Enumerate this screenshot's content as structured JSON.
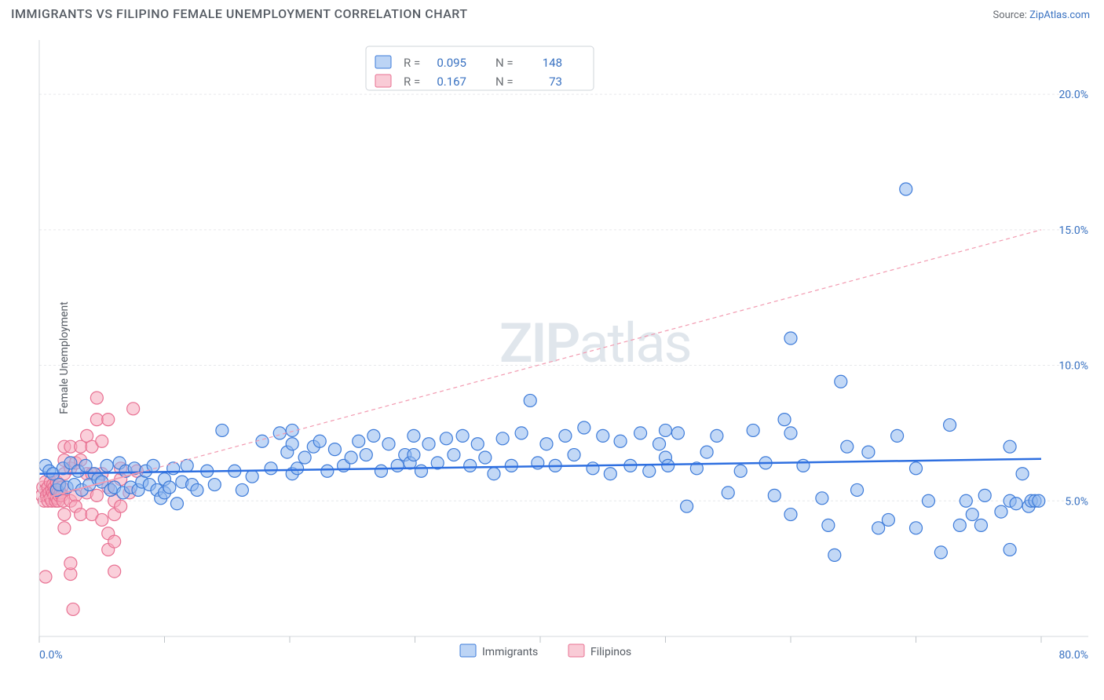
{
  "title": "IMMIGRANTS VS FILIPINO FEMALE UNEMPLOYMENT CORRELATION CHART",
  "source_label": "Source: ",
  "source_link_text": "ZipAtlas.com",
  "ylabel": "Female Unemployment",
  "watermark_a": "ZIP",
  "watermark_b": "atlas",
  "chart": {
    "type": "scatter",
    "background_color": "#ffffff",
    "grid_color": "#e6e8eb",
    "axis_color": "#d6d9dd",
    "tick_color": "#bfc4c9",
    "xlim": [
      0,
      80
    ],
    "ylim": [
      0,
      22
    ],
    "x_tick_positions": [
      0,
      10,
      20,
      30,
      40,
      50,
      60,
      70,
      80
    ],
    "x_tick_labels": [
      "0.0%",
      "",
      "",
      "",
      "",
      "",
      "",
      "",
      "80.0%"
    ],
    "y_tick_positions": [
      5,
      10,
      15,
      20
    ],
    "y_tick_labels": [
      "5.0%",
      "10.0%",
      "15.0%",
      "20.0%"
    ],
    "label_fontsize": 14,
    "tick_label_color": "#3871c1",
    "series": [
      {
        "name": "Immigrants",
        "marker_color": "#8fb8ee",
        "marker_edge_color": "#3d7bd9",
        "marker_radius": 8,
        "marker_opacity": 0.55,
        "trend": {
          "x0": 0,
          "y0": 6.0,
          "x1": 80,
          "y1": 6.55,
          "color": "#2e6fe0",
          "width": 2.5,
          "dash": null
        },
        "R": 0.095,
        "N": 148,
        "points": [
          [
            0.5,
            6.3
          ],
          [
            0.8,
            6.1
          ],
          [
            1.1,
            6.0
          ],
          [
            1.4,
            5.4
          ],
          [
            1.6,
            5.6
          ],
          [
            1.9,
            6.2
          ],
          [
            2.2,
            5.5
          ],
          [
            2.5,
            6.4
          ],
          [
            2.8,
            5.6
          ],
          [
            3.1,
            6.1
          ],
          [
            3.4,
            5.4
          ],
          [
            3.7,
            6.3
          ],
          [
            4.0,
            5.6
          ],
          [
            4.4,
            6.0
          ],
          [
            4.7,
            5.8
          ],
          [
            5.0,
            5.7
          ],
          [
            5.4,
            6.3
          ],
          [
            5.7,
            5.4
          ],
          [
            6.0,
            5.5
          ],
          [
            6.4,
            6.4
          ],
          [
            6.7,
            5.3
          ],
          [
            6.9,
            6.1
          ],
          [
            7.3,
            5.5
          ],
          [
            7.6,
            6.2
          ],
          [
            7.9,
            5.4
          ],
          [
            8.2,
            5.7
          ],
          [
            8.5,
            6.1
          ],
          [
            8.8,
            5.6
          ],
          [
            9.1,
            6.3
          ],
          [
            9.4,
            5.4
          ],
          [
            9.7,
            5.1
          ],
          [
            10.0,
            5.3
          ],
          [
            10.0,
            5.8
          ],
          [
            10.4,
            5.5
          ],
          [
            10.7,
            6.2
          ],
          [
            11.0,
            4.9
          ],
          [
            11.4,
            5.7
          ],
          [
            11.8,
            6.3
          ],
          [
            12.2,
            5.6
          ],
          [
            12.6,
            5.4
          ],
          [
            13.4,
            6.1
          ],
          [
            14.0,
            5.6
          ],
          [
            14.6,
            7.6
          ],
          [
            15.6,
            6.1
          ],
          [
            16.2,
            5.4
          ],
          [
            17.0,
            5.9
          ],
          [
            17.8,
            7.2
          ],
          [
            18.5,
            6.2
          ],
          [
            19.2,
            7.5
          ],
          [
            19.8,
            6.8
          ],
          [
            20.2,
            7.1
          ],
          [
            20.2,
            6.0
          ],
          [
            20.2,
            7.6
          ],
          [
            20.6,
            6.2
          ],
          [
            21.2,
            6.6
          ],
          [
            21.9,
            7.0
          ],
          [
            22.4,
            7.2
          ],
          [
            23.0,
            6.1
          ],
          [
            23.6,
            6.9
          ],
          [
            24.3,
            6.3
          ],
          [
            24.9,
            6.6
          ],
          [
            25.5,
            7.2
          ],
          [
            26.1,
            6.7
          ],
          [
            26.7,
            7.4
          ],
          [
            27.3,
            6.1
          ],
          [
            27.9,
            7.1
          ],
          [
            28.6,
            6.3
          ],
          [
            29.2,
            6.7
          ],
          [
            29.6,
            6.4
          ],
          [
            29.9,
            7.4
          ],
          [
            29.9,
            6.7
          ],
          [
            30.5,
            6.1
          ],
          [
            31.1,
            7.1
          ],
          [
            31.8,
            6.4
          ],
          [
            32.5,
            7.3
          ],
          [
            33.1,
            6.7
          ],
          [
            33.8,
            7.4
          ],
          [
            34.4,
            6.3
          ],
          [
            35.0,
            7.1
          ],
          [
            35.6,
            6.6
          ],
          [
            36.3,
            6.0
          ],
          [
            37.0,
            7.3
          ],
          [
            37.7,
            6.3
          ],
          [
            38.5,
            7.5
          ],
          [
            39.2,
            8.7
          ],
          [
            39.8,
            6.4
          ],
          [
            40.5,
            7.1
          ],
          [
            41.2,
            6.3
          ],
          [
            42.0,
            7.4
          ],
          [
            42.7,
            6.7
          ],
          [
            43.5,
            7.7
          ],
          [
            44.2,
            6.2
          ],
          [
            45.0,
            7.4
          ],
          [
            45.6,
            6.0
          ],
          [
            46.4,
            7.2
          ],
          [
            47.2,
            6.3
          ],
          [
            48.0,
            7.5
          ],
          [
            48.7,
            6.1
          ],
          [
            49.5,
            7.1
          ],
          [
            50.0,
            7.6
          ],
          [
            50.0,
            6.6
          ],
          [
            50.2,
            6.3
          ],
          [
            51.0,
            7.5
          ],
          [
            51.7,
            4.8
          ],
          [
            52.5,
            6.2
          ],
          [
            53.3,
            6.8
          ],
          [
            54.1,
            7.4
          ],
          [
            55.0,
            5.3
          ],
          [
            56.0,
            6.1
          ],
          [
            57.0,
            7.6
          ],
          [
            58.0,
            6.4
          ],
          [
            58.7,
            5.2
          ],
          [
            59.5,
            8.0
          ],
          [
            60.0,
            4.5
          ],
          [
            60.0,
            7.5
          ],
          [
            60.0,
            11.0
          ],
          [
            61.0,
            6.3
          ],
          [
            62.5,
            5.1
          ],
          [
            63.0,
            4.1
          ],
          [
            63.5,
            3.0
          ],
          [
            64.0,
            9.4
          ],
          [
            64.5,
            7.0
          ],
          [
            65.3,
            5.4
          ],
          [
            66.2,
            6.8
          ],
          [
            67.0,
            4.0
          ],
          [
            67.8,
            4.3
          ],
          [
            68.5,
            7.4
          ],
          [
            69.2,
            16.5
          ],
          [
            70.0,
            6.2
          ],
          [
            70.0,
            4.0
          ],
          [
            71.0,
            5.0
          ],
          [
            72.0,
            3.1
          ],
          [
            72.7,
            7.8
          ],
          [
            73.5,
            4.1
          ],
          [
            74.0,
            5.0
          ],
          [
            74.5,
            4.5
          ],
          [
            75.2,
            4.1
          ],
          [
            75.5,
            5.2
          ],
          [
            76.8,
            4.6
          ],
          [
            77.5,
            3.2
          ],
          [
            77.5,
            5.0
          ],
          [
            77.5,
            7.0
          ],
          [
            78.0,
            4.9
          ],
          [
            78.5,
            6.0
          ],
          [
            79.0,
            4.8
          ],
          [
            79.2,
            5.0
          ],
          [
            79.5,
            5.0
          ],
          [
            79.8,
            5.0
          ]
        ]
      },
      {
        "name": "Filipinos",
        "marker_color": "#f5a8bb",
        "marker_edge_color": "#e87092",
        "marker_radius": 8,
        "marker_opacity": 0.55,
        "trend": {
          "x0": 0,
          "y0": 5.05,
          "x1": 80,
          "y1": 15.0,
          "color": "#f29ab0",
          "width": 1.2,
          "dash": "5 4"
        },
        "trend_solid_until_x": 8,
        "R": 0.167,
        "N": 73,
        "points": [
          [
            0.2,
            5.2
          ],
          [
            0.3,
            5.5
          ],
          [
            0.4,
            5.0
          ],
          [
            0.5,
            5.4
          ],
          [
            0.5,
            5.7
          ],
          [
            0.6,
            5.2
          ],
          [
            0.7,
            5.5
          ],
          [
            0.7,
            5.0
          ],
          [
            0.8,
            5.3
          ],
          [
            0.9,
            5.7
          ],
          [
            0.9,
            5.1
          ],
          [
            1.0,
            5.4
          ],
          [
            1.0,
            5.0
          ],
          [
            1.1,
            5.6
          ],
          [
            1.1,
            5.3
          ],
          [
            1.2,
            5.2
          ],
          [
            1.2,
            5.5
          ],
          [
            1.3,
            5.0
          ],
          [
            1.3,
            5.4
          ],
          [
            1.4,
            5.7
          ],
          [
            1.4,
            5.1
          ],
          [
            1.5,
            5.3
          ],
          [
            1.5,
            5.0
          ],
          [
            1.6,
            5.6
          ],
          [
            1.6,
            5.2
          ],
          [
            1.7,
            5.3
          ],
          [
            1.8,
            5.5
          ],
          [
            1.8,
            5.2
          ],
          [
            1.9,
            5.0
          ],
          [
            2.0,
            6.0
          ],
          [
            2.0,
            6.5
          ],
          [
            2.0,
            7.0
          ],
          [
            2.0,
            4.5
          ],
          [
            2.0,
            4.0
          ],
          [
            2.5,
            6.2
          ],
          [
            2.5,
            7.0
          ],
          [
            2.5,
            5.0
          ],
          [
            2.9,
            6.4
          ],
          [
            2.9,
            5.2
          ],
          [
            2.9,
            4.8
          ],
          [
            3.3,
            7.0
          ],
          [
            3.3,
            4.5
          ],
          [
            3.3,
            6.5
          ],
          [
            3.8,
            7.4
          ],
          [
            3.8,
            5.3
          ],
          [
            3.8,
            6.0
          ],
          [
            4.2,
            6.0
          ],
          [
            4.2,
            4.5
          ],
          [
            4.2,
            7.0
          ],
          [
            4.6,
            8.0
          ],
          [
            4.6,
            8.8
          ],
          [
            4.6,
            5.2
          ],
          [
            5.0,
            4.3
          ],
          [
            5.0,
            6.0
          ],
          [
            5.0,
            7.2
          ],
          [
            5.5,
            3.2
          ],
          [
            5.5,
            5.5
          ],
          [
            5.5,
            3.8
          ],
          [
            6.0,
            3.5
          ],
          [
            6.0,
            5.0
          ],
          [
            6.0,
            4.5
          ],
          [
            6.5,
            5.8
          ],
          [
            6.5,
            6.2
          ],
          [
            6.5,
            4.8
          ],
          [
            2.5,
            2.3
          ],
          [
            2.5,
            2.7
          ],
          [
            7.5,
            8.4
          ],
          [
            7.2,
            5.3
          ],
          [
            7.8,
            6.1
          ],
          [
            6.0,
            2.4
          ],
          [
            5.5,
            8.0
          ],
          [
            2.7,
            1.0
          ],
          [
            0.5,
            2.2
          ]
        ]
      }
    ],
    "top_legend": {
      "R_label": "R =",
      "N_label": "N =",
      "rows": [
        {
          "swatch": "blue",
          "R": "0.095",
          "N": "148"
        },
        {
          "swatch": "pink",
          "R": "0.167",
          "N": "73"
        }
      ]
    },
    "bottom_legend": {
      "items": [
        {
          "swatch": "blue",
          "label": "Immigrants"
        },
        {
          "swatch": "pink",
          "label": "Filipinos"
        }
      ]
    }
  }
}
